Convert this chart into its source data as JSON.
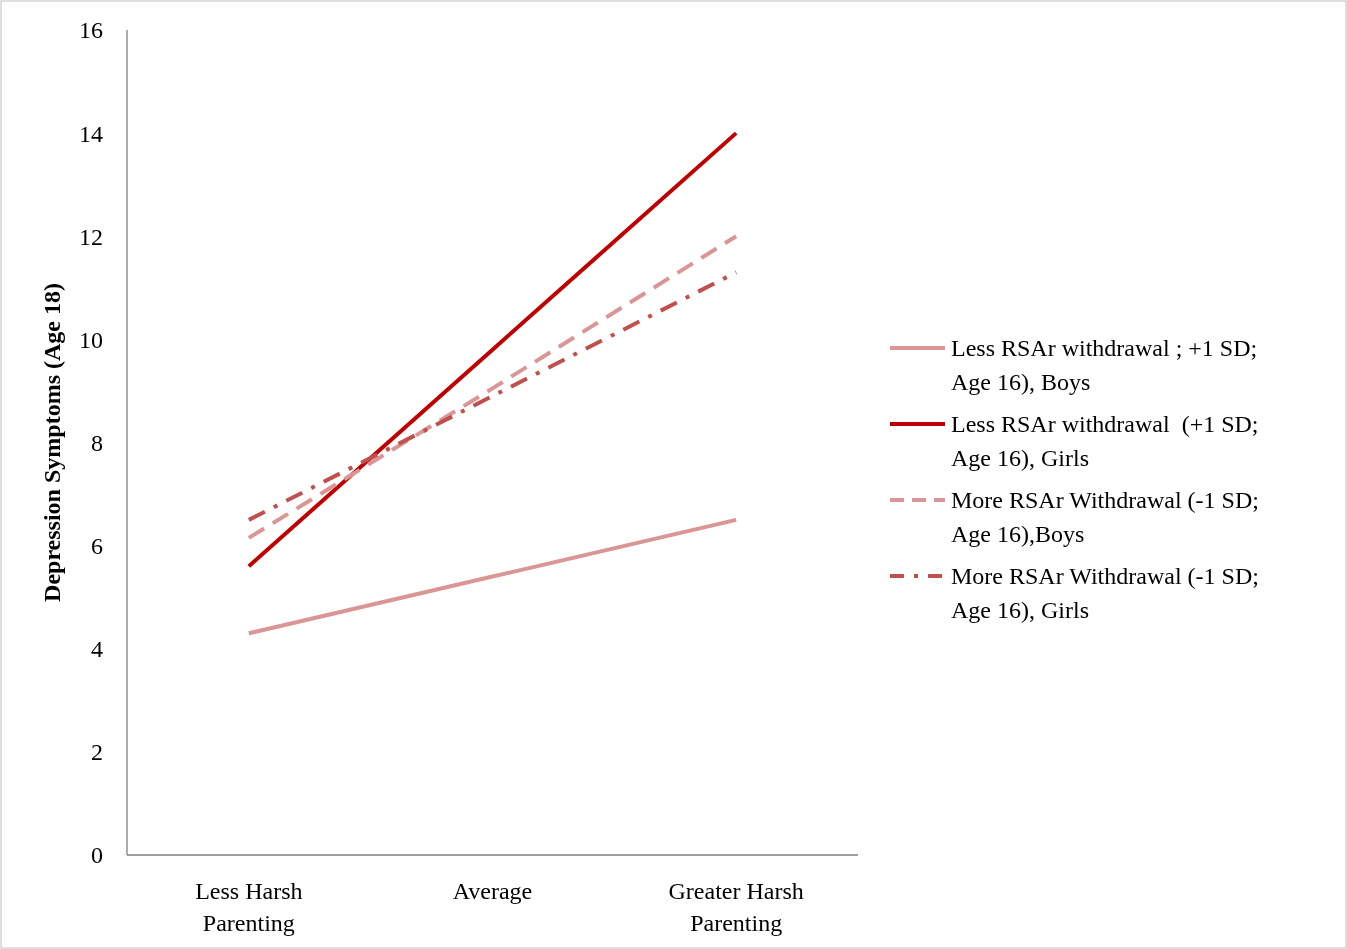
{
  "chart_data": {
    "type": "line",
    "ylabel": "Depression Symptoms (Age 18)",
    "categories": [
      "Less Harsh Parenting",
      "Average",
      "Greater Harsh Parenting"
    ],
    "ylim": [
      0,
      16
    ],
    "yticks": [
      0,
      2,
      4,
      6,
      8,
      10,
      12,
      14,
      16
    ],
    "grid": false,
    "legend": "right",
    "marker": "none",
    "series": [
      {
        "name": "Less RSAr withdrawal ; +1 SD; Age 16), Boys",
        "color": "#d99694",
        "values": [
          4.3,
          5.4,
          6.5
        ],
        "line_style": "solid"
      },
      {
        "name": "Less RSAr withdrawal  (+1 SD; Age 16), Girls",
        "color": "#c00000",
        "values": [
          5.6,
          9.8,
          14.0
        ],
        "line_style": "solid"
      },
      {
        "name": "More RSAr Withdrawal (-1 SD; Age 16),Boys",
        "color": "#d99694",
        "values": [
          6.15,
          9.05,
          12.0
        ],
        "line_style": "dashed"
      },
      {
        "name": "More RSAr Withdrawal (-1 SD; Age 16), Girls",
        "color": "#c0504d",
        "values": [
          6.5,
          8.9,
          11.3
        ],
        "line_style": "dashdot"
      }
    ]
  }
}
